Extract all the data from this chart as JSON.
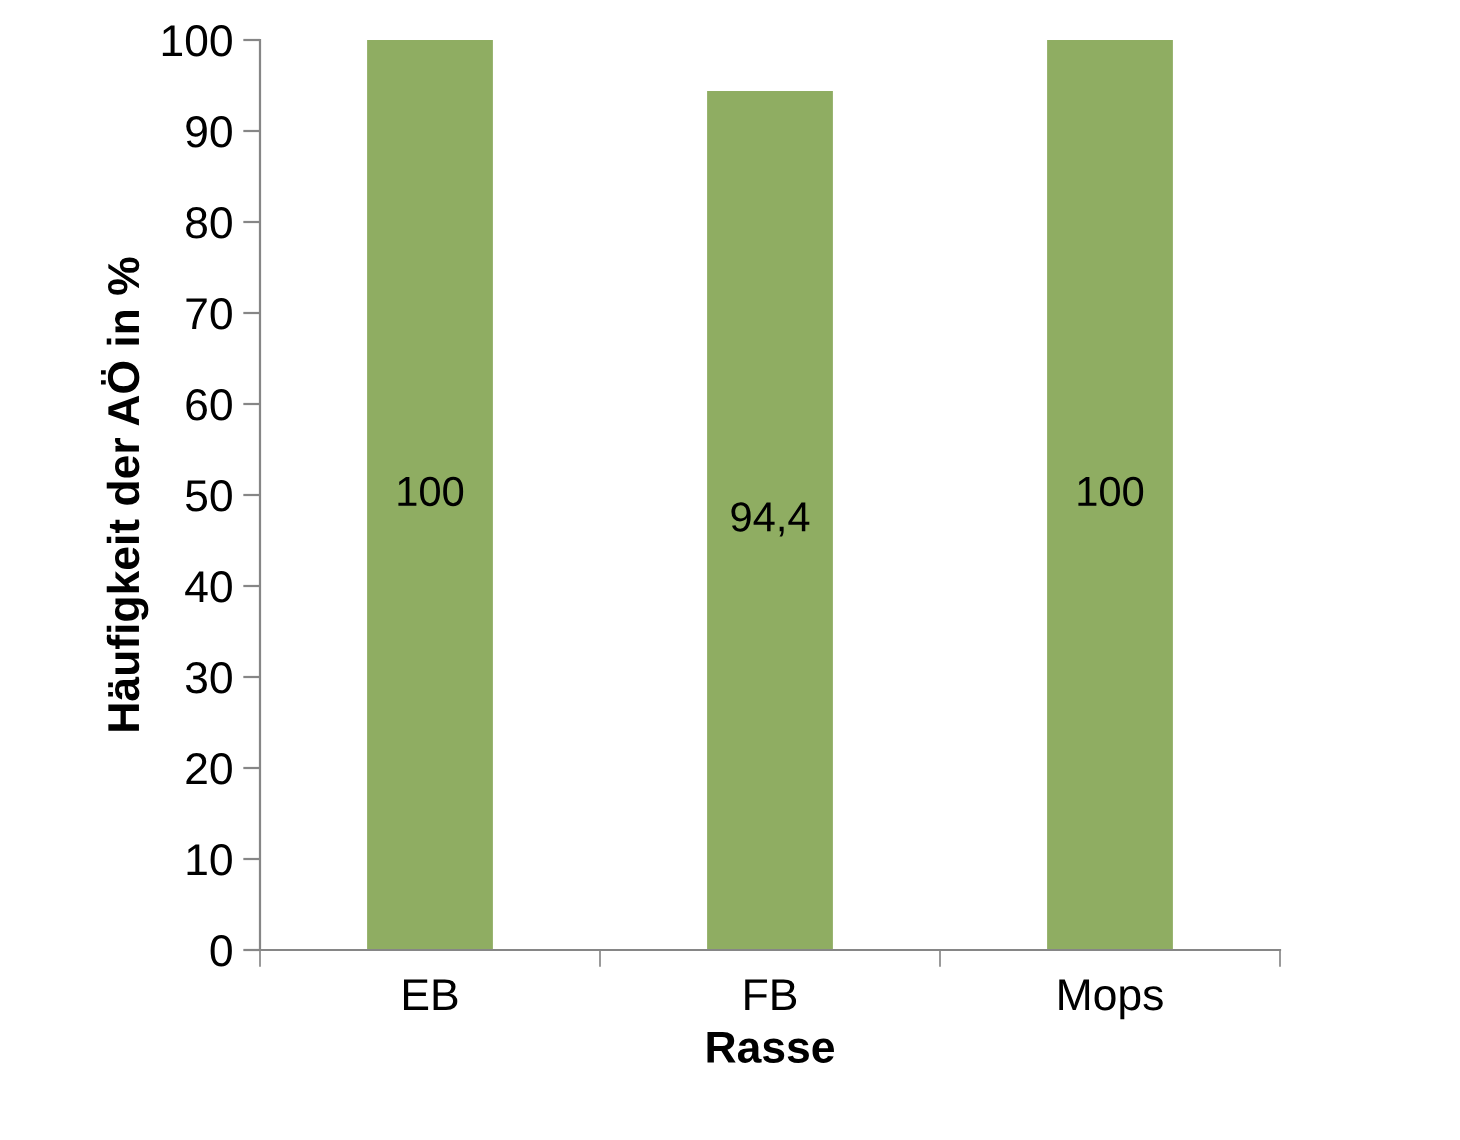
{
  "chart_data": {
    "type": "bar",
    "xlabel": "Rasse",
    "ylabel": "Häufigkeit der AÖ in %",
    "categories": [
      "EB",
      "FB",
      "Mops"
    ],
    "series": [
      {
        "color": "#8fad62",
        "values": [
          100,
          94.4,
          100
        ],
        "value_labels": [
          "100",
          "94,4",
          "100"
        ]
      }
    ],
    "ylim": [
      0,
      100
    ],
    "yticks": [
      0,
      10,
      20,
      30,
      40,
      50,
      60,
      70,
      80,
      90,
      100
    ],
    "grid": false
  }
}
